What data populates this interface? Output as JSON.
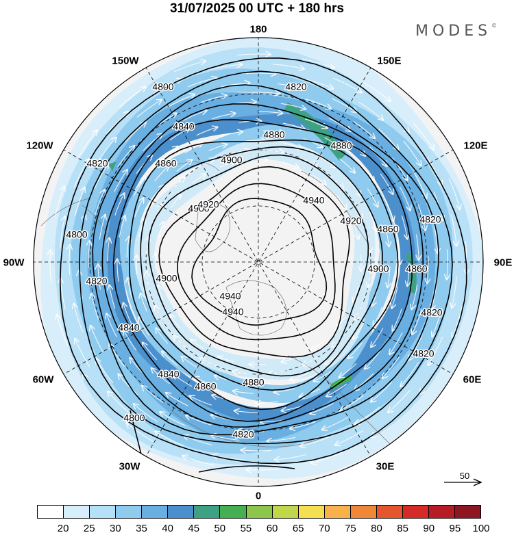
{
  "title": "31/07/2025  00 UTC  + 180 hrs",
  "brand": "MODES",
  "brand_mark": "©",
  "longitude_labels": [
    "180",
    "150E",
    "120E",
    "90E",
    "60E",
    "30E",
    "0",
    "30W",
    "60W",
    "90W",
    "120W",
    "150W"
  ],
  "contour_labels": [
    "4800",
    "4820",
    "4840",
    "4860",
    "4880",
    "4900",
    "4920",
    "4940"
  ],
  "reference_vector": "50",
  "colorbar": {
    "ticks": [
      "20",
      "25",
      "30",
      "35",
      "40",
      "45",
      "50",
      "55",
      "60",
      "65",
      "70",
      "75",
      "80",
      "85",
      "90",
      "95",
      "100"
    ],
    "colors": [
      "#ffffff",
      "#d6effa",
      "#b6e0f7",
      "#8fcbef",
      "#6aafe1",
      "#4b90cd",
      "#3fa184",
      "#45b051",
      "#8cc64a",
      "#c2d649",
      "#f4df52",
      "#f7b24b",
      "#f08738",
      "#e4562b",
      "#d42b29",
      "#b51c26",
      "#8e1522"
    ]
  }
}
